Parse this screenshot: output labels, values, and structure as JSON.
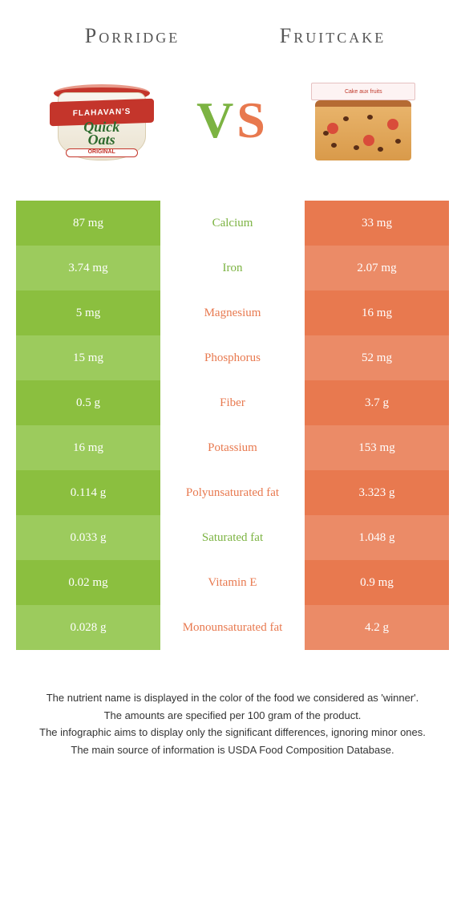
{
  "header": {
    "left_title": "Porridge",
    "right_title": "Fruitcake",
    "vs_v": "V",
    "vs_s": "S",
    "oats_brand": "FLAHAVAN'S",
    "oats_line1": "Quick",
    "oats_line2": "Oats",
    "oats_tag": "ORIGINAL",
    "cake_box_text": "Cake aux fruits"
  },
  "colors": {
    "green": "#8bbf3f",
    "greenLight": "#9ccb5d",
    "orange": "#e8794f",
    "orangeLight": "#eb8b67"
  },
  "rows": [
    {
      "label": "Calcium",
      "left": "87 mg",
      "right": "33 mg",
      "winner": "left"
    },
    {
      "label": "Iron",
      "left": "3.74 mg",
      "right": "2.07 mg",
      "winner": "left"
    },
    {
      "label": "Magnesium",
      "left": "5 mg",
      "right": "16 mg",
      "winner": "right"
    },
    {
      "label": "Phosphorus",
      "left": "15 mg",
      "right": "52 mg",
      "winner": "right"
    },
    {
      "label": "Fiber",
      "left": "0.5 g",
      "right": "3.7 g",
      "winner": "right"
    },
    {
      "label": "Potassium",
      "left": "16 mg",
      "right": "153 mg",
      "winner": "right"
    },
    {
      "label": "Polyunsaturated fat",
      "left": "0.114 g",
      "right": "3.323 g",
      "winner": "right"
    },
    {
      "label": "Saturated fat",
      "left": "0.033 g",
      "right": "1.048 g",
      "winner": "left"
    },
    {
      "label": "Vitamin E",
      "left": "0.02 mg",
      "right": "0.9 mg",
      "winner": "right"
    },
    {
      "label": "Monounsaturated fat",
      "left": "0.028 g",
      "right": "4.2 g",
      "winner": "right"
    }
  ],
  "footnotes": [
    "The nutrient name is displayed in the color of the food we considered as 'winner'.",
    "The amounts are specified per 100 gram of the product.",
    "The infographic aims to display only the significant differences, ignoring minor ones.",
    "The main source of information is USDA Food Composition Database."
  ]
}
